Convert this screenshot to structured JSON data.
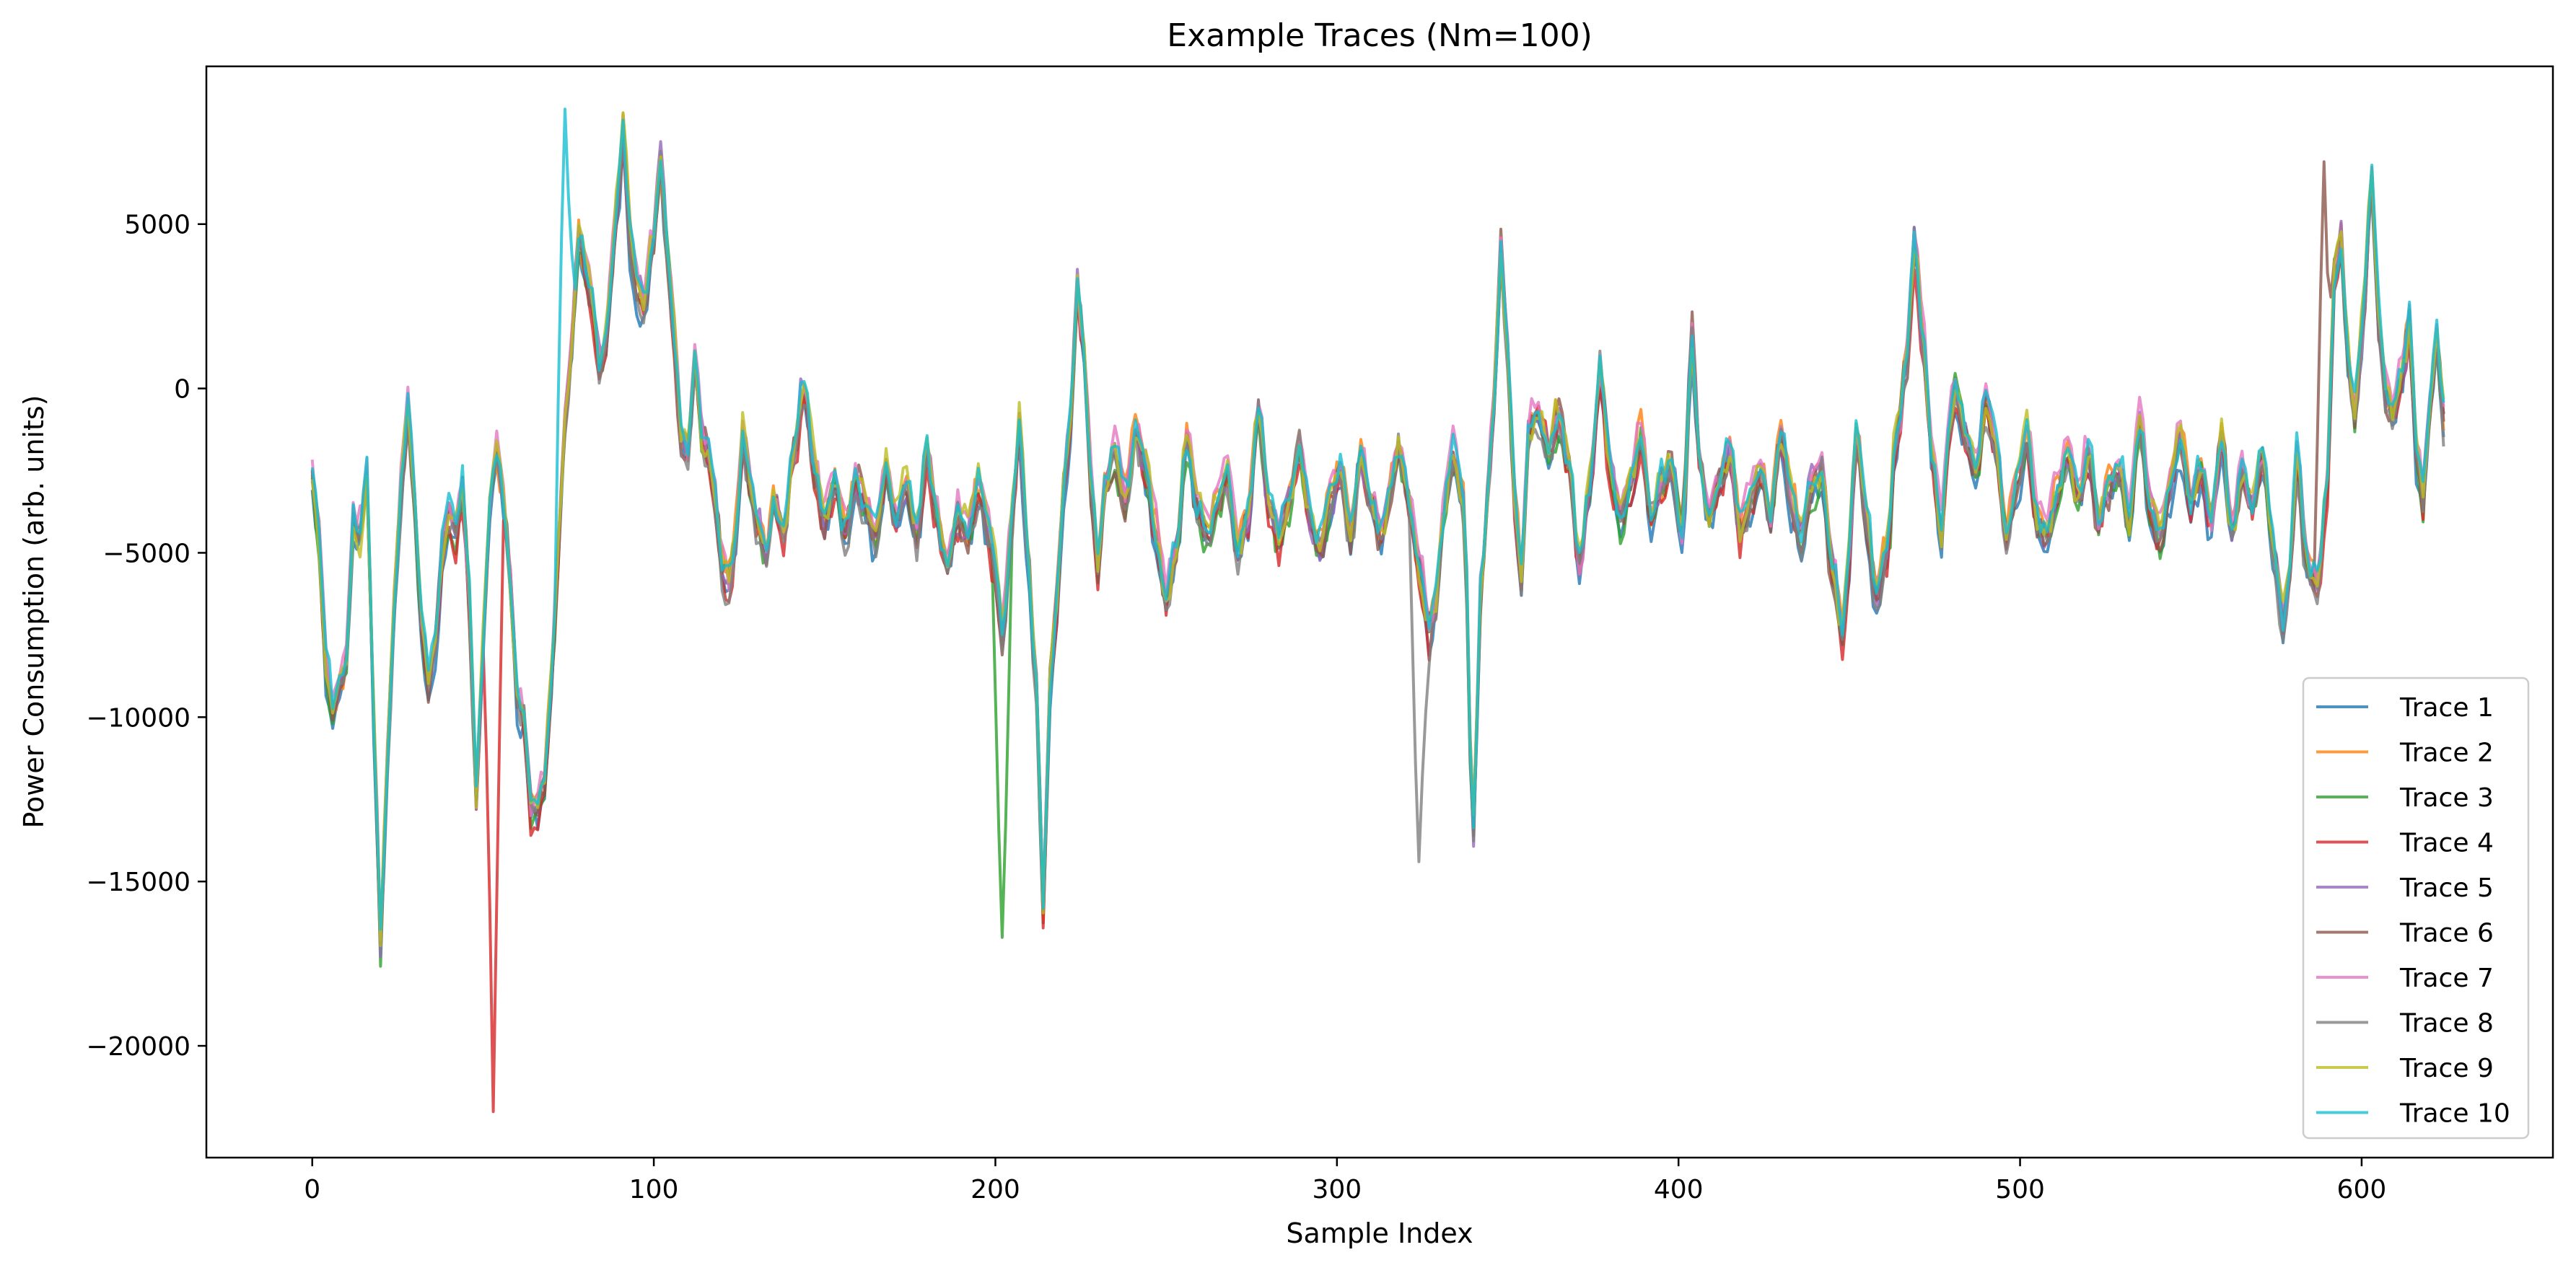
{
  "chart_data": {
    "type": "line",
    "title": "Example Traces (Nm=100)",
    "xlabel": "Sample Index",
    "ylabel": "Power Consumption (arb. units)",
    "xlim": [
      -31,
      656
    ],
    "ylim": [
      -23400,
      9800
    ],
    "xticks": [
      0,
      100,
      200,
      300,
      400,
      500,
      600
    ],
    "yticks": [
      -20000,
      -15000,
      -10000,
      -5000,
      0,
      5000
    ],
    "ytick_labels": [
      "−20000",
      "−15000",
      "−10000",
      "−5000",
      "0",
      "5000"
    ],
    "grid": false,
    "legend_position": "lower-right",
    "n_points": 625,
    "base_keypoints": [
      [
        0,
        -2500
      ],
      [
        2,
        -4500
      ],
      [
        4,
        -8500
      ],
      [
        6,
        -9800
      ],
      [
        8,
        -9000
      ],
      [
        10,
        -8200
      ],
      [
        12,
        -4000
      ],
      [
        14,
        -4500
      ],
      [
        16,
        -2500
      ],
      [
        18,
        -10000
      ],
      [
        20,
        -16800
      ],
      [
        22,
        -11000
      ],
      [
        24,
        -6500
      ],
      [
        26,
        -3000
      ],
      [
        28,
        -500
      ],
      [
        30,
        -3500
      ],
      [
        32,
        -7000
      ],
      [
        34,
        -9000
      ],
      [
        36,
        -8000
      ],
      [
        38,
        -5000
      ],
      [
        40,
        -3800
      ],
      [
        42,
        -4500
      ],
      [
        44,
        -3000
      ],
      [
        46,
        -6500
      ],
      [
        48,
        -12500
      ],
      [
        50,
        -8000
      ],
      [
        52,
        -3500
      ],
      [
        54,
        -2000
      ],
      [
        56,
        -3500
      ],
      [
        58,
        -6000
      ],
      [
        60,
        -9500
      ],
      [
        62,
        -10000
      ],
      [
        64,
        -12800
      ],
      [
        66,
        -13000
      ],
      [
        68,
        -12000
      ],
      [
        70,
        -9000
      ],
      [
        72,
        -5000
      ],
      [
        74,
        -1000
      ],
      [
        76,
        1500
      ],
      [
        78,
        4500
      ],
      [
        80,
        3500
      ],
      [
        82,
        2500
      ],
      [
        84,
        500
      ],
      [
        86,
        1500
      ],
      [
        88,
        4000
      ],
      [
        90,
        6500
      ],
      [
        91,
        8000
      ],
      [
        93,
        4500
      ],
      [
        95,
        3000
      ],
      [
        97,
        2500
      ],
      [
        100,
        4500
      ],
      [
        102,
        7000
      ],
      [
        104,
        4000
      ],
      [
        106,
        1500
      ],
      [
        108,
        -1500
      ],
      [
        110,
        -2000
      ],
      [
        112,
        1000
      ],
      [
        114,
        -1500
      ],
      [
        116,
        -2000
      ],
      [
        118,
        -3500
      ],
      [
        120,
        -5500
      ],
      [
        122,
        -6000
      ],
      [
        124,
        -4500
      ],
      [
        126,
        -1500
      ],
      [
        128,
        -3000
      ],
      [
        130,
        -4000
      ],
      [
        133,
        -5000
      ],
      [
        135,
        -3500
      ],
      [
        138,
        -4500
      ],
      [
        141,
        -2000
      ],
      [
        144,
        0
      ],
      [
        147,
        -2500
      ],
      [
        150,
        -4000
      ],
      [
        153,
        -3000
      ],
      [
        156,
        -4500
      ],
      [
        159,
        -3000
      ],
      [
        162,
        -3500
      ],
      [
        165,
        -4500
      ],
      [
        168,
        -2500
      ],
      [
        171,
        -4000
      ],
      [
        174,
        -3000
      ],
      [
        177,
        -4500
      ],
      [
        180,
        -2000
      ],
      [
        183,
        -4000
      ],
      [
        186,
        -5500
      ],
      [
        189,
        -4000
      ],
      [
        192,
        -4500
      ],
      [
        195,
        -3000
      ],
      [
        198,
        -4500
      ],
      [
        200,
        -5500
      ],
      [
        202,
        -7500
      ],
      [
        205,
        -4000
      ],
      [
        207,
        -1000
      ],
      [
        209,
        -4500
      ],
      [
        212,
        -9000
      ],
      [
        214,
        -16000
      ],
      [
        216,
        -9000
      ],
      [
        218,
        -6500
      ],
      [
        220,
        -3000
      ],
      [
        222,
        -1000
      ],
      [
        224,
        3000
      ],
      [
        226,
        1000
      ],
      [
        228,
        -3000
      ],
      [
        230,
        -5500
      ],
      [
        232,
        -3000
      ],
      [
        235,
        -2000
      ],
      [
        238,
        -3500
      ],
      [
        241,
        -1500
      ],
      [
        244,
        -2500
      ],
      [
        247,
        -4500
      ],
      [
        250,
        -6500
      ],
      [
        253,
        -5000
      ],
      [
        256,
        -1500
      ],
      [
        259,
        -3500
      ],
      [
        262,
        -4500
      ],
      [
        265,
        -3500
      ],
      [
        268,
        -2500
      ],
      [
        271,
        -5000
      ],
      [
        274,
        -4000
      ],
      [
        277,
        -800
      ],
      [
        280,
        -3500
      ],
      [
        283,
        -4500
      ],
      [
        286,
        -3500
      ],
      [
        289,
        -2000
      ],
      [
        292,
        -4000
      ],
      [
        295,
        -5000
      ],
      [
        298,
        -3500
      ],
      [
        301,
        -2500
      ],
      [
        304,
        -4500
      ],
      [
        307,
        -2000
      ],
      [
        310,
        -3500
      ],
      [
        313,
        -4500
      ],
      [
        316,
        -3000
      ],
      [
        318,
        -1800
      ],
      [
        321,
        -3500
      ],
      [
        324,
        -5500
      ],
      [
        327,
        -7500
      ],
      [
        329,
        -6500
      ],
      [
        331,
        -4000
      ],
      [
        334,
        -2000
      ],
      [
        337,
        -3500
      ],
      [
        340,
        -13500
      ],
      [
        342,
        -6500
      ],
      [
        344,
        -3500
      ],
      [
        346,
        -500
      ],
      [
        348,
        4000
      ],
      [
        350,
        1000
      ],
      [
        352,
        -3500
      ],
      [
        354,
        -6000
      ],
      [
        356,
        -1500
      ],
      [
        359,
        -800
      ],
      [
        362,
        -2000
      ],
      [
        365,
        -1000
      ],
      [
        368,
        -2500
      ],
      [
        371,
        -5500
      ],
      [
        374,
        -3000
      ],
      [
        377,
        500
      ],
      [
        380,
        -2500
      ],
      [
        383,
        -4000
      ],
      [
        386,
        -3000
      ],
      [
        389,
        -1500
      ],
      [
        392,
        -4000
      ],
      [
        395,
        -3000
      ],
      [
        398,
        -2500
      ],
      [
        401,
        -4500
      ],
      [
        404,
        1500
      ],
      [
        406,
        -2000
      ],
      [
        409,
        -4000
      ],
      [
        412,
        -3000
      ],
      [
        415,
        -2000
      ],
      [
        418,
        -4500
      ],
      [
        421,
        -3500
      ],
      [
        424,
        -2500
      ],
      [
        427,
        -4000
      ],
      [
        430,
        -1500
      ],
      [
        433,
        -3500
      ],
      [
        436,
        -4500
      ],
      [
        439,
        -3000
      ],
      [
        442,
        -2500
      ],
      [
        445,
        -5500
      ],
      [
        448,
        -7500
      ],
      [
        450,
        -5000
      ],
      [
        452,
        -1500
      ],
      [
        455,
        -4000
      ],
      [
        458,
        -6500
      ],
      [
        461,
        -5000
      ],
      [
        464,
        -1500
      ],
      [
        467,
        1000
      ],
      [
        469,
        4500
      ],
      [
        472,
        1000
      ],
      [
        474,
        -2000
      ],
      [
        477,
        -4500
      ],
      [
        479,
        -1500
      ],
      [
        481,
        0
      ],
      [
        484,
        -1500
      ],
      [
        487,
        -2500
      ],
      [
        490,
        -500
      ],
      [
        493,
        -2000
      ],
      [
        496,
        -4500
      ],
      [
        499,
        -3000
      ],
      [
        502,
        -1500
      ],
      [
        505,
        -4000
      ],
      [
        508,
        -4500
      ],
      [
        511,
        -3000
      ],
      [
        514,
        -2000
      ],
      [
        517,
        -3500
      ],
      [
        520,
        -2000
      ],
      [
        523,
        -4000
      ],
      [
        526,
        -3000
      ],
      [
        529,
        -2500
      ],
      [
        532,
        -4000
      ],
      [
        535,
        -1000
      ],
      [
        538,
        -3500
      ],
      [
        541,
        -4500
      ],
      [
        544,
        -3000
      ],
      [
        547,
        -1500
      ],
      [
        550,
        -3500
      ],
      [
        553,
        -2500
      ],
      [
        556,
        -4000
      ],
      [
        559,
        -1500
      ],
      [
        562,
        -4500
      ],
      [
        565,
        -2500
      ],
      [
        568,
        -3500
      ],
      [
        571,
        -2000
      ],
      [
        574,
        -5000
      ],
      [
        577,
        -7000
      ],
      [
        579,
        -5500
      ],
      [
        581,
        -2000
      ],
      [
        584,
        -5500
      ],
      [
        587,
        -6000
      ],
      [
        590,
        -3000
      ],
      [
        592,
        3500
      ],
      [
        594,
        4500
      ],
      [
        596,
        1000
      ],
      [
        598,
        -1000
      ],
      [
        600,
        1500
      ],
      [
        603,
        6500
      ],
      [
        605,
        2000
      ],
      [
        607,
        0
      ],
      [
        609,
        -500
      ],
      [
        612,
        500
      ],
      [
        614,
        2000
      ],
      [
        616,
        -2000
      ],
      [
        618,
        -3500
      ],
      [
        620,
        -500
      ],
      [
        622,
        1500
      ],
      [
        624,
        -1000
      ]
    ],
    "series": [
      {
        "name": "Trace 1",
        "color": "#1f77b4",
        "offset": -300,
        "seed": 11
      },
      {
        "name": "Trace 2",
        "color": "#ff7f0e",
        "offset": 200,
        "seed": 23
      },
      {
        "name": "Trace 3",
        "color": "#2ca02c",
        "offset": -100,
        "seed": 37
      },
      {
        "name": "Trace 4",
        "color": "#d62728",
        "offset": -200,
        "seed": 41
      },
      {
        "name": "Trace 5",
        "color": "#9467bd",
        "offset": 100,
        "seed": 53
      },
      {
        "name": "Trace 6",
        "color": "#8c564b",
        "offset": 0,
        "seed": 67
      },
      {
        "name": "Trace 7",
        "color": "#e377c2",
        "offset": 300,
        "seed": 71
      },
      {
        "name": "Trace 8",
        "color": "#7f7f7f",
        "offset": -150,
        "seed": 83
      },
      {
        "name": "Trace 9",
        "color": "#bcbd22",
        "offset": 150,
        "seed": 97
      },
      {
        "name": "Trace 10",
        "color": "#17becf",
        "offset": 250,
        "seed": 101
      }
    ],
    "annotated_extrema": [
      {
        "series": "Trace 4",
        "x": 53,
        "y": -22000
      },
      {
        "series": "Trace 3",
        "x": 202,
        "y": -16700
      },
      {
        "series": "Trace 8",
        "x": 324,
        "y": -14400
      },
      {
        "series": "Trace 10",
        "x": 74,
        "y": 8500
      },
      {
        "series": "Trace 6",
        "x": 589,
        "y": 6900
      }
    ]
  }
}
